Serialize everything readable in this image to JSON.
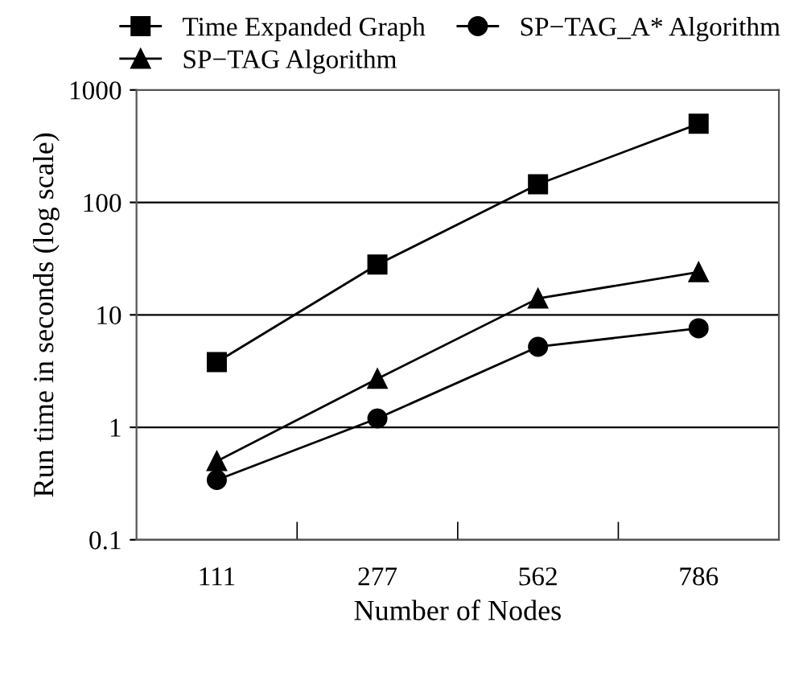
{
  "chart_data": {
    "type": "line",
    "xlabel": "Number of Nodes",
    "ylabel": "Run time in seconds (log scale)",
    "categories": [
      "111",
      "277",
      "562",
      "786"
    ],
    "series": [
      {
        "name": "Time Expanded Graph",
        "color": "#000000",
        "marker": "square",
        "values": [
          3.8,
          28,
          145,
          500
        ]
      },
      {
        "name": "SP−TAG Algorithm",
        "color": "#000000",
        "marker": "triangle",
        "values": [
          0.5,
          2.7,
          14,
          24
        ]
      },
      {
        "name": "SP−TAG_A* Algorithm",
        "color": "#000000",
        "marker": "circle",
        "values": [
          0.34,
          1.2,
          5.2,
          7.6
        ]
      }
    ],
    "log": "y",
    "ylim": [
      0.1,
      1000
    ],
    "yticks": [
      0.1,
      1,
      10,
      100,
      1000
    ],
    "grid": "y",
    "legend": "top",
    "line_style": "solid"
  }
}
